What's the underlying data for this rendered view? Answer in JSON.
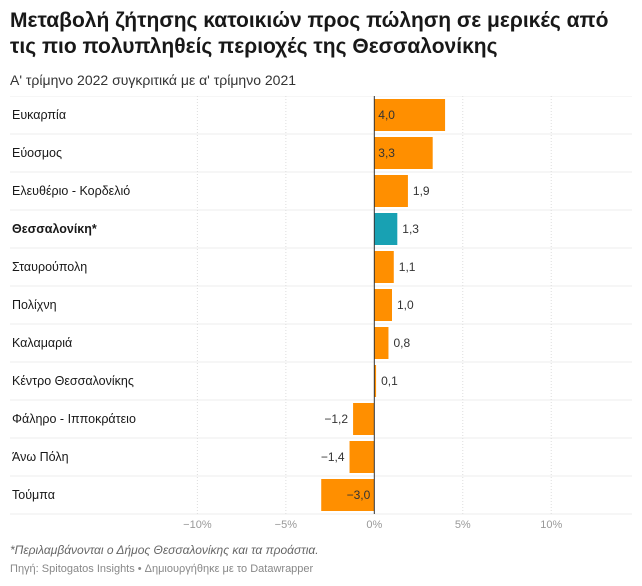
{
  "chart_data": {
    "type": "bar",
    "orientation": "horizontal",
    "title": "Μεταβολή ζήτησης κατοικιών προς πώληση σε μερικές από τις πιο πολυπληθείς περιοχές της Θεσσαλονίκης",
    "subtitle": "Α' τρίμηνο 2022 συγκριτικά με α' τρίμηνο 2021",
    "categories": [
      "Ευκαρπία",
      "Εύοσμος",
      "Ελευθέριο - Κορδελιό",
      "Θεσσαλονίκη*",
      "Σταυρούπολη",
      "Πολίχνη",
      "Καλαμαριά",
      "Κέντρο Θεσσαλονίκης",
      "Φάληρο - Ιπποκράτειο",
      "Άνω Πόλη",
      "Τούμπα"
    ],
    "values": [
      4.0,
      3.3,
      1.9,
      1.3,
      1.1,
      1.0,
      0.8,
      0.1,
      -1.2,
      -1.4,
      -3.0
    ],
    "value_labels": [
      "4,0",
      "3,3",
      "1,9",
      "1,3",
      "1,1",
      "1,0",
      "0,8",
      "0,1",
      "−1,2",
      "−1,4",
      "−3,0"
    ],
    "highlight_category": "Θεσσαλονίκη*",
    "xlim": [
      -12,
      14
    ],
    "xticks": [
      -10,
      -5,
      0,
      5,
      10
    ],
    "xtick_labels": [
      "−10%",
      "−5%",
      "0%",
      "5%",
      "10%"
    ],
    "grid": true,
    "colors": {
      "bar": "#FF8F00",
      "highlight": "#18A1B3",
      "grid": "#DDDDDD",
      "zero_line": "#333333"
    }
  },
  "footnote": "*Περιλαμβάνονται ο Δήμος Θεσσαλονίκης και τα προάστια.",
  "source": {
    "text": "Πηγή: Spitogatos Insights",
    "separator": "•",
    "credit": "Δημιουργήθηκε με το Datawrapper"
  }
}
